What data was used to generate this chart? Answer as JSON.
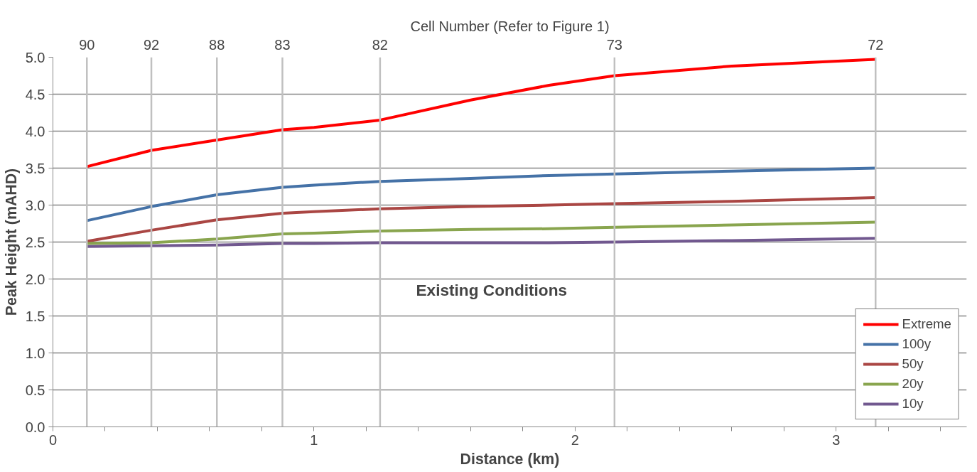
{
  "chart_data": {
    "type": "line",
    "xlabel": "Distance (km)",
    "ylabel": "Peak Height (mAHD)",
    "x": [
      0.13,
      0.377,
      0.628,
      0.879,
      1.0,
      1.253,
      1.6,
      1.9,
      2.151,
      2.6,
      3.151
    ],
    "series": [
      {
        "name": "Extreme",
        "color": "#ff0000",
        "values": [
          3.52,
          3.74,
          3.88,
          4.02,
          4.05,
          4.15,
          4.42,
          4.62,
          4.75,
          4.88,
          4.97
        ]
      },
      {
        "name": "100y",
        "color": "#4572a7",
        "values": [
          2.79,
          2.98,
          3.14,
          3.24,
          3.27,
          3.32,
          3.36,
          3.4,
          3.42,
          3.46,
          3.5
        ]
      },
      {
        "name": "50y",
        "color": "#aa4643",
        "values": [
          2.51,
          2.66,
          2.8,
          2.89,
          2.91,
          2.95,
          2.98,
          3.0,
          3.02,
          3.05,
          3.1
        ]
      },
      {
        "name": "20y",
        "color": "#89a54e",
        "values": [
          2.48,
          2.49,
          2.54,
          2.61,
          2.62,
          2.65,
          2.67,
          2.68,
          2.7,
          2.73,
          2.77
        ]
      },
      {
        "name": "10y",
        "color": "#71588f",
        "values": [
          2.44,
          2.45,
          2.46,
          2.48,
          2.48,
          2.49,
          2.49,
          2.49,
          2.5,
          2.52,
          2.55
        ]
      }
    ],
    "xlim": [
      0,
      3.5
    ],
    "ylim": [
      0,
      5
    ],
    "xticks": [
      0,
      {
        "value": 0.2,
        "label": null
      },
      {
        "value": 0.4,
        "label": null
      },
      {
        "value": 0.6,
        "label": null
      },
      {
        "value": 0.8,
        "label": null
      },
      1,
      {
        "value": 1.2,
        "label": null
      },
      {
        "value": 1.4,
        "label": null
      },
      {
        "value": 1.6,
        "label": null
      },
      {
        "value": 1.8,
        "label": null
      },
      2,
      {
        "value": 2.2,
        "label": null
      },
      {
        "value": 2.4,
        "label": null
      },
      {
        "value": 2.6,
        "label": null
      },
      {
        "value": 2.8,
        "label": null
      },
      3,
      {
        "value": 3.2,
        "label": null
      },
      {
        "value": 3.4,
        "label": null
      }
    ],
    "ref_lines": [
      {
        "axis": "x",
        "value": 0.13
      },
      {
        "axis": "x",
        "value": 0.377
      },
      {
        "axis": "x",
        "value": 0.628
      },
      {
        "axis": "x",
        "value": 0.879
      },
      {
        "axis": "x",
        "value": 1.253
      },
      {
        "axis": "x",
        "value": 2.151
      },
      {
        "axis": "x",
        "value": 3.151
      }
    ],
    "yticks": [
      {
        "value": 0,
        "label": "0.0"
      },
      {
        "value": 0.5,
        "label": "0.5"
      },
      {
        "value": 1,
        "label": "1.0"
      },
      {
        "value": 1.5,
        "label": "1.5"
      },
      {
        "value": 2,
        "label": "2.0"
      },
      {
        "value": 2.5,
        "label": "2.5"
      },
      {
        "value": 3,
        "label": "3.0"
      },
      {
        "value": 3.5,
        "label": "3.5"
      },
      {
        "value": 4,
        "label": "4.0"
      },
      {
        "value": 4.5,
        "label": "4.5"
      },
      {
        "value": 5,
        "label": "5.0"
      }
    ],
    "annotations": [
      "Cell Number (Refer to Figure 1)",
      "Existing Conditions",
      "90",
      "92",
      "88",
      "83",
      "82",
      "73",
      "72"
    ],
    "grid": "y",
    "legend": "bottom right",
    "marker": "none",
    "line_style": "solid"
  }
}
